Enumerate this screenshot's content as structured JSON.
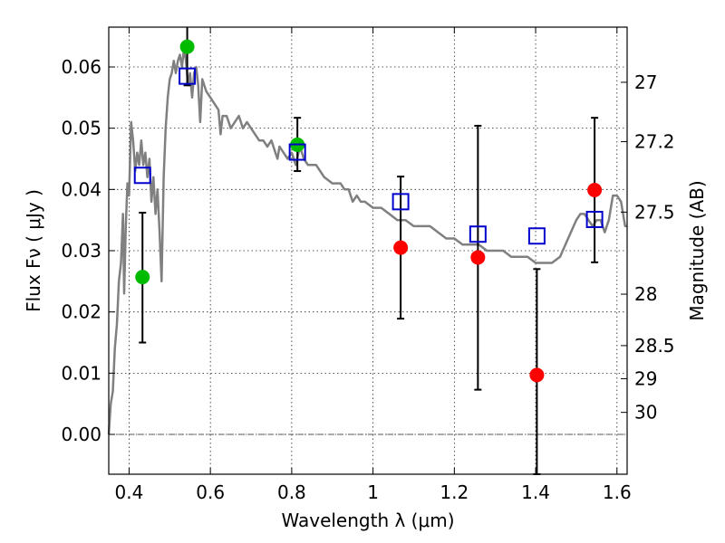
{
  "chart_data": {
    "type": "scatter",
    "xlabel": "Wavelength  λ (μm)",
    "ylabel": "Flux  Fν  ( μJy )",
    "y2label": "Magnitude (AB)",
    "xlim": [
      0.35,
      1.625
    ],
    "ylim": [
      -0.0065,
      0.0665
    ],
    "x_ticks": [
      0.4,
      0.6,
      0.8,
      1.0,
      1.2,
      1.4,
      1.6
    ],
    "x_tick_labels": [
      "0.4",
      "0.6",
      "0.8",
      "1",
      "1.2",
      "1.4",
      "1.6"
    ],
    "y_ticks": [
      0.0,
      0.01,
      0.02,
      0.03,
      0.04,
      0.05,
      0.06
    ],
    "y_tick_labels": [
      "0.00",
      "0.01",
      "0.02",
      "0.03",
      "0.04",
      "0.05",
      "0.06"
    ],
    "y2_ticks": [
      {
        "label": "27",
        "flux": 0.0575
      },
      {
        "label": "27.2",
        "flux": 0.0478
      },
      {
        "label": "27.5",
        "flux": 0.0363
      },
      {
        "label": "28",
        "flux": 0.0229
      },
      {
        "label": "28.5",
        "flux": 0.0145
      },
      {
        "label": "29",
        "flux": 0.0091
      },
      {
        "label": "30",
        "flux": 0.0036
      }
    ],
    "grid": true,
    "zero_line": 0.0,
    "colors": {
      "template": "#808080",
      "green": "#00bb00",
      "red": "#ff0000",
      "model": "#0000cc",
      "errorbar": "#000000"
    },
    "series": [
      {
        "type": "line",
        "color": "#808080",
        "points": [
          [
            0.35,
            0.0
          ],
          [
            0.355,
            0.005
          ],
          [
            0.36,
            0.007
          ],
          [
            0.365,
            0.014
          ],
          [
            0.37,
            0.018
          ],
          [
            0.375,
            0.025
          ],
          [
            0.38,
            0.028
          ],
          [
            0.385,
            0.036
          ],
          [
            0.388,
            0.023
          ],
          [
            0.392,
            0.034
          ],
          [
            0.396,
            0.041
          ],
          [
            0.4,
            0.039
          ],
          [
            0.405,
            0.051
          ],
          [
            0.41,
            0.048
          ],
          [
            0.415,
            0.043
          ],
          [
            0.42,
            0.046
          ],
          [
            0.425,
            0.044
          ],
          [
            0.43,
            0.048
          ],
          [
            0.435,
            0.044
          ],
          [
            0.44,
            0.046
          ],
          [
            0.445,
            0.042
          ],
          [
            0.45,
            0.045
          ],
          [
            0.455,
            0.038
          ],
          [
            0.46,
            0.042
          ],
          [
            0.465,
            0.036
          ],
          [
            0.47,
            0.04
          ],
          [
            0.475,
            0.033
          ],
          [
            0.48,
            0.025
          ],
          [
            0.485,
            0.042
          ],
          [
            0.49,
            0.05
          ],
          [
            0.495,
            0.055
          ],
          [
            0.5,
            0.058
          ],
          [
            0.505,
            0.059
          ],
          [
            0.51,
            0.061
          ],
          [
            0.515,
            0.059
          ],
          [
            0.52,
            0.061
          ],
          [
            0.525,
            0.062
          ],
          [
            0.53,
            0.06
          ],
          [
            0.535,
            0.063
          ],
          [
            0.54,
            0.061
          ],
          [
            0.545,
            0.057
          ],
          [
            0.55,
            0.059
          ],
          [
            0.555,
            0.055
          ],
          [
            0.56,
            0.059
          ],
          [
            0.565,
            0.06
          ],
          [
            0.57,
            0.057
          ],
          [
            0.575,
            0.051
          ],
          [
            0.58,
            0.058
          ],
          [
            0.585,
            0.057
          ],
          [
            0.59,
            0.056
          ],
          [
            0.6,
            0.055
          ],
          [
            0.61,
            0.054
          ],
          [
            0.62,
            0.053
          ],
          [
            0.625,
            0.049
          ],
          [
            0.63,
            0.052
          ],
          [
            0.64,
            0.052
          ],
          [
            0.65,
            0.05
          ],
          [
            0.66,
            0.051
          ],
          [
            0.67,
            0.052
          ],
          [
            0.675,
            0.051
          ],
          [
            0.68,
            0.05
          ],
          [
            0.69,
            0.051
          ],
          [
            0.7,
            0.05
          ],
          [
            0.71,
            0.049
          ],
          [
            0.72,
            0.048
          ],
          [
            0.73,
            0.048
          ],
          [
            0.74,
            0.047
          ],
          [
            0.75,
            0.048
          ],
          [
            0.76,
            0.046
          ],
          [
            0.765,
            0.045
          ],
          [
            0.77,
            0.047
          ],
          [
            0.78,
            0.046
          ],
          [
            0.79,
            0.045
          ],
          [
            0.8,
            0.046
          ],
          [
            0.81,
            0.044
          ],
          [
            0.82,
            0.047
          ],
          [
            0.83,
            0.045
          ],
          [
            0.84,
            0.044
          ],
          [
            0.86,
            0.044
          ],
          [
            0.88,
            0.042
          ],
          [
            0.9,
            0.041
          ],
          [
            0.92,
            0.041
          ],
          [
            0.93,
            0.04
          ],
          [
            0.94,
            0.04
          ],
          [
            0.95,
            0.038
          ],
          [
            0.96,
            0.039
          ],
          [
            0.97,
            0.038
          ],
          [
            0.98,
            0.038
          ],
          [
            1.0,
            0.037
          ],
          [
            1.02,
            0.037
          ],
          [
            1.04,
            0.036
          ],
          [
            1.06,
            0.035
          ],
          [
            1.08,
            0.035
          ],
          [
            1.1,
            0.034
          ],
          [
            1.12,
            0.034
          ],
          [
            1.14,
            0.034
          ],
          [
            1.16,
            0.033
          ],
          [
            1.18,
            0.032
          ],
          [
            1.2,
            0.032
          ],
          [
            1.22,
            0.031
          ],
          [
            1.24,
            0.031
          ],
          [
            1.26,
            0.031
          ],
          [
            1.28,
            0.03
          ],
          [
            1.3,
            0.03
          ],
          [
            1.32,
            0.03
          ],
          [
            1.34,
            0.029
          ],
          [
            1.36,
            0.029
          ],
          [
            1.38,
            0.029
          ],
          [
            1.4,
            0.028
          ],
          [
            1.42,
            0.028
          ],
          [
            1.44,
            0.028
          ],
          [
            1.46,
            0.029
          ],
          [
            1.48,
            0.032
          ],
          [
            1.5,
            0.035
          ],
          [
            1.51,
            0.036
          ],
          [
            1.52,
            0.036
          ],
          [
            1.53,
            0.035
          ],
          [
            1.54,
            0.034
          ],
          [
            1.55,
            0.035
          ],
          [
            1.56,
            0.035
          ],
          [
            1.57,
            0.033
          ],
          [
            1.58,
            0.035
          ],
          [
            1.59,
            0.039
          ],
          [
            1.6,
            0.039
          ],
          [
            1.61,
            0.038
          ],
          [
            1.62,
            0.034
          ],
          [
            1.625,
            0.034
          ]
        ]
      },
      {
        "type": "errorbar",
        "color": "#00bb00",
        "points": [
          {
            "x": 0.433,
            "y": 0.0257,
            "ylow": 0.015,
            "yhigh": 0.0362
          },
          {
            "x": 0.543,
            "y": 0.0633,
            "ylow": 0.057,
            "yhigh": 0.068
          },
          {
            "x": 0.814,
            "y": 0.0473,
            "ylow": 0.043,
            "yhigh": 0.0517
          }
        ]
      },
      {
        "type": "errorbar",
        "color": "#ff0000",
        "points": [
          {
            "x": 1.068,
            "y": 0.0305,
            "ylow": 0.0189,
            "yhigh": 0.0421
          },
          {
            "x": 1.258,
            "y": 0.0289,
            "ylow": 0.0073,
            "yhigh": 0.0504
          },
          {
            "x": 1.403,
            "y": 0.0097,
            "ylow": -0.0065,
            "yhigh": 0.027
          },
          {
            "x": 1.545,
            "y": 0.0399,
            "ylow": 0.0281,
            "yhigh": 0.0517
          }
        ]
      },
      {
        "type": "scatter",
        "color": "#0000cc",
        "marker": "square",
        "points": [
          [
            0.433,
            0.0423
          ],
          [
            0.543,
            0.0585
          ],
          [
            0.814,
            0.0461
          ],
          [
            1.068,
            0.038
          ],
          [
            1.258,
            0.0327
          ],
          [
            1.403,
            0.0324
          ],
          [
            1.545,
            0.0351
          ]
        ]
      }
    ]
  }
}
